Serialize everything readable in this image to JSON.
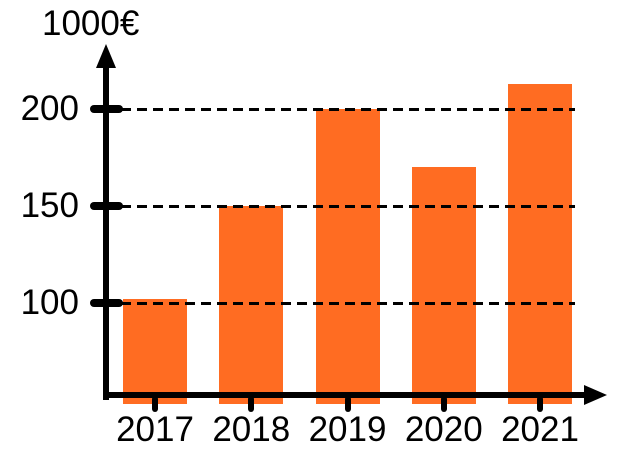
{
  "chart_data": {
    "type": "bar",
    "title": "",
    "ylabel": "1000€",
    "xlabel": "",
    "categories": [
      "2017",
      "2018",
      "2019",
      "2020",
      "2021"
    ],
    "values": [
      102,
      150,
      200,
      170,
      213
    ],
    "yticks": [
      200,
      150,
      100
    ],
    "ytick_labels": [
      "200",
      "150",
      "100"
    ],
    "ylim": [
      50,
      230
    ],
    "grid": true,
    "gridline_style": "dashed",
    "legend": false,
    "bar_color": "#FF6C22",
    "axis_color": "#000000",
    "background_color": "#FFFFFF"
  }
}
